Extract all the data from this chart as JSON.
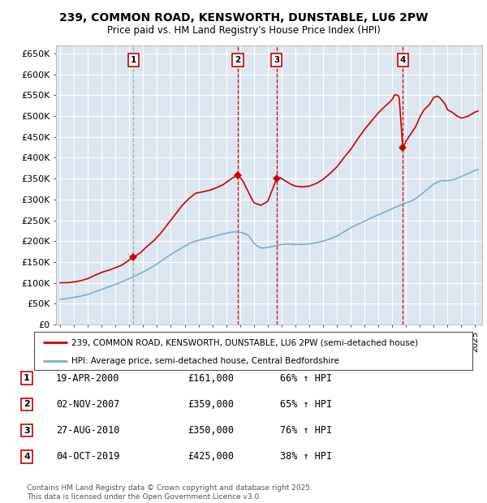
{
  "title": "239, COMMON ROAD, KENSWORTH, DUNSTABLE, LU6 2PW",
  "subtitle": "Price paid vs. HM Land Registry's House Price Index (HPI)",
  "background_color": "#dce6f1",
  "ylabel": "",
  "ylim": [
    0,
    670000
  ],
  "yticks": [
    0,
    50000,
    100000,
    150000,
    200000,
    250000,
    300000,
    350000,
    400000,
    450000,
    500000,
    550000,
    600000,
    650000
  ],
  "ytick_labels": [
    "£0",
    "£50K",
    "£100K",
    "£150K",
    "£200K",
    "£250K",
    "£300K",
    "£350K",
    "£400K",
    "£450K",
    "£500K",
    "£550K",
    "£600K",
    "£650K"
  ],
  "xlim_start": 1994.7,
  "xlim_end": 2025.5,
  "xtick_years": [
    1995,
    1996,
    1997,
    1998,
    1999,
    2000,
    2001,
    2002,
    2003,
    2004,
    2005,
    2006,
    2007,
    2008,
    2009,
    2010,
    2011,
    2012,
    2013,
    2014,
    2015,
    2016,
    2017,
    2018,
    2019,
    2020,
    2021,
    2022,
    2023,
    2024,
    2025
  ],
  "sale_dates": [
    2000.3,
    2007.84,
    2010.65,
    2019.76
  ],
  "sale_prices": [
    161000,
    359000,
    350000,
    425000
  ],
  "sale_labels": [
    "1",
    "2",
    "3",
    "4"
  ],
  "red_line_color": "#cc0000",
  "blue_line_color": "#7aadcf",
  "vline1_color": "#aaaaaa",
  "vline_color": "#cc0000",
  "legend_red": "239, COMMON ROAD, KENSWORTH, DUNSTABLE, LU6 2PW (semi-detached house)",
  "legend_blue": "HPI: Average price, semi-detached house, Central Bedfordshire",
  "table_entries": [
    {
      "num": "1",
      "date": "19-APR-2000",
      "price": "£161,000",
      "hpi": "66% ↑ HPI"
    },
    {
      "num": "2",
      "date": "02-NOV-2007",
      "price": "£359,000",
      "hpi": "65% ↑ HPI"
    },
    {
      "num": "3",
      "date": "27-AUG-2010",
      "price": "£350,000",
      "hpi": "76% ↑ HPI"
    },
    {
      "num": "4",
      "date": "04-OCT-2019",
      "price": "£425,000",
      "hpi": "38% ↑ HPI"
    }
  ],
  "footer": "Contains HM Land Registry data © Crown copyright and database right 2025.\nThis data is licensed under the Open Government Licence v3.0."
}
